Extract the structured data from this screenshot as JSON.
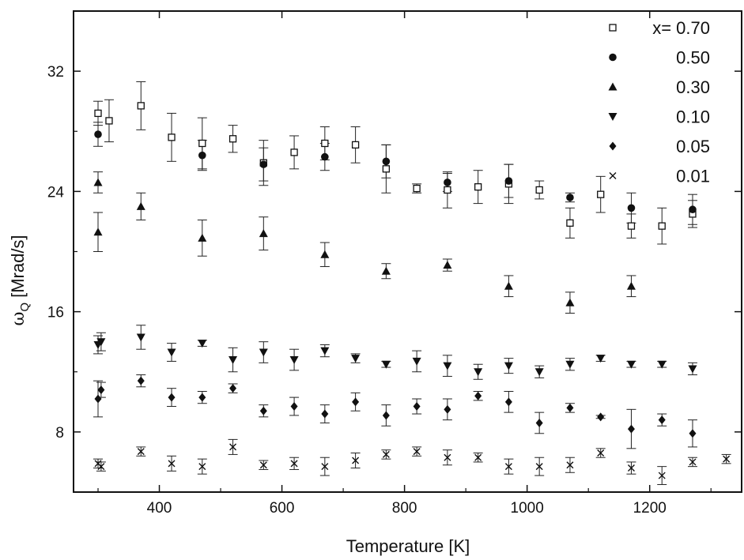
{
  "chart_data": {
    "type": "scatter",
    "title": "",
    "xlabel": "Temperature [K]",
    "ylabel_main": "ω",
    "ylabel_sub": "Q",
    "ylabel_unit": "[Mrad/s]",
    "xlim": [
      260,
      1350
    ],
    "ylim": [
      4,
      36
    ],
    "xticks": [
      400,
      600,
      800,
      1000,
      1200
    ],
    "yticks": [
      8,
      16,
      24,
      32
    ],
    "grid": false,
    "legend_position": "top-right",
    "series": [
      {
        "name": "x= 0.70",
        "marker": "open-square",
        "points": [
          {
            "x": 300,
            "y": 29.2,
            "err": 0.8
          },
          {
            "x": 318,
            "y": 28.7,
            "err": 1.4
          },
          {
            "x": 370,
            "y": 29.7,
            "err": 1.6
          },
          {
            "x": 420,
            "y": 27.6,
            "err": 1.6
          },
          {
            "x": 470,
            "y": 27.2,
            "err": 1.7
          },
          {
            "x": 520,
            "y": 27.5,
            "err": 0.9
          },
          {
            "x": 570,
            "y": 25.9,
            "err": 1.5
          },
          {
            "x": 620,
            "y": 26.6,
            "err": 1.1
          },
          {
            "x": 670,
            "y": 27.2,
            "err": 1.1
          },
          {
            "x": 720,
            "y": 27.1,
            "err": 1.2
          },
          {
            "x": 770,
            "y": 25.5,
            "err": 1.6
          },
          {
            "x": 820,
            "y": 24.2,
            "err": 0.3
          },
          {
            "x": 870,
            "y": 24.1,
            "err": 1.2
          },
          {
            "x": 920,
            "y": 24.3,
            "err": 1.1
          },
          {
            "x": 970,
            "y": 24.5,
            "err": 1.3
          },
          {
            "x": 1020,
            "y": 24.1,
            "err": 0.6
          },
          {
            "x": 1070,
            "y": 21.9,
            "err": 1.0
          },
          {
            "x": 1120,
            "y": 23.8,
            "err": 1.2
          },
          {
            "x": 1170,
            "y": 21.7,
            "err": 0.8
          },
          {
            "x": 1220,
            "y": 21.7,
            "err": 1.2
          },
          {
            "x": 1270,
            "y": 22.5,
            "err": 0.9
          }
        ]
      },
      {
        "name": "0.50",
        "marker": "filled-circle",
        "points": [
          {
            "x": 300,
            "y": 27.8,
            "err": 0.8
          },
          {
            "x": 470,
            "y": 26.4,
            "err": 1.0
          },
          {
            "x": 570,
            "y": 25.8,
            "err": 1.1
          },
          {
            "x": 670,
            "y": 26.3,
            "err": 0.9
          },
          {
            "x": 770,
            "y": 26.0,
            "err": 1.1
          },
          {
            "x": 870,
            "y": 24.6,
            "err": 0.6
          },
          {
            "x": 970,
            "y": 24.7,
            "err": 1.1
          },
          {
            "x": 1070,
            "y": 23.6,
            "err": 0.3
          },
          {
            "x": 1170,
            "y": 22.9,
            "err": 1.0
          },
          {
            "x": 1270,
            "y": 22.8,
            "err": 1.0
          }
        ]
      },
      {
        "name": "0.30",
        "marker": "filled-triangle-up",
        "points": [
          {
            "x": 300,
            "y": 24.6,
            "err": 0.7
          },
          {
            "x": 300,
            "y": 21.3,
            "err": 1.3
          },
          {
            "x": 370,
            "y": 23.0,
            "err": 0.9
          },
          {
            "x": 470,
            "y": 20.9,
            "err": 1.2
          },
          {
            "x": 570,
            "y": 21.2,
            "err": 1.1
          },
          {
            "x": 670,
            "y": 19.8,
            "err": 0.8
          },
          {
            "x": 770,
            "y": 18.7,
            "err": 0.5
          },
          {
            "x": 870,
            "y": 19.1,
            "err": 0.4
          },
          {
            "x": 970,
            "y": 17.7,
            "err": 0.7
          },
          {
            "x": 1070,
            "y": 16.6,
            "err": 0.7
          },
          {
            "x": 1170,
            "y": 17.7,
            "err": 0.7
          }
        ]
      },
      {
        "name": "0.10",
        "marker": "filled-triangle-down",
        "points": [
          {
            "x": 300,
            "y": 13.8,
            "err": 0.6
          },
          {
            "x": 305,
            "y": 14.0,
            "err": 0.6
          },
          {
            "x": 370,
            "y": 14.3,
            "err": 0.8
          },
          {
            "x": 420,
            "y": 13.3,
            "err": 0.6
          },
          {
            "x": 470,
            "y": 13.9,
            "err": 0.2
          },
          {
            "x": 520,
            "y": 12.8,
            "err": 0.8
          },
          {
            "x": 570,
            "y": 13.3,
            "err": 0.7
          },
          {
            "x": 620,
            "y": 12.8,
            "err": 0.7
          },
          {
            "x": 670,
            "y": 13.4,
            "err": 0.4
          },
          {
            "x": 720,
            "y": 12.9,
            "err": 0.3
          },
          {
            "x": 770,
            "y": 12.5,
            "err": 0.2
          },
          {
            "x": 820,
            "y": 12.7,
            "err": 0.7
          },
          {
            "x": 870,
            "y": 12.4,
            "err": 0.7
          },
          {
            "x": 920,
            "y": 12.0,
            "err": 0.5
          },
          {
            "x": 970,
            "y": 12.4,
            "err": 0.5
          },
          {
            "x": 1020,
            "y": 12.0,
            "err": 0.4
          },
          {
            "x": 1070,
            "y": 12.5,
            "err": 0.4
          },
          {
            "x": 1120,
            "y": 12.9,
            "err": 0.2
          },
          {
            "x": 1170,
            "y": 12.5,
            "err": 0.2
          },
          {
            "x": 1220,
            "y": 12.5,
            "err": 0.2
          },
          {
            "x": 1270,
            "y": 12.2,
            "err": 0.4
          }
        ]
      },
      {
        "name": "0.05",
        "marker": "filled-diamond",
        "points": [
          {
            "x": 300,
            "y": 10.2,
            "err": 1.2
          },
          {
            "x": 305,
            "y": 10.8,
            "err": 0.5
          },
          {
            "x": 370,
            "y": 11.4,
            "err": 0.4
          },
          {
            "x": 420,
            "y": 10.3,
            "err": 0.6
          },
          {
            "x": 470,
            "y": 10.3,
            "err": 0.4
          },
          {
            "x": 520,
            "y": 10.9,
            "err": 0.3
          },
          {
            "x": 570,
            "y": 9.4,
            "err": 0.4
          },
          {
            "x": 620,
            "y": 9.7,
            "err": 0.6
          },
          {
            "x": 670,
            "y": 9.2,
            "err": 0.6
          },
          {
            "x": 720,
            "y": 10.0,
            "err": 0.6
          },
          {
            "x": 770,
            "y": 9.1,
            "err": 0.7
          },
          {
            "x": 820,
            "y": 9.7,
            "err": 0.5
          },
          {
            "x": 870,
            "y": 9.5,
            "err": 0.7
          },
          {
            "x": 920,
            "y": 10.4,
            "err": 0.3
          },
          {
            "x": 970,
            "y": 10.0,
            "err": 0.7
          },
          {
            "x": 1020,
            "y": 8.6,
            "err": 0.7
          },
          {
            "x": 1070,
            "y": 9.6,
            "err": 0.3
          },
          {
            "x": 1120,
            "y": 9.0,
            "err": 0.1
          },
          {
            "x": 1170,
            "y": 8.2,
            "err": 1.3
          },
          {
            "x": 1220,
            "y": 8.8,
            "err": 0.4
          },
          {
            "x": 1270,
            "y": 7.9,
            "err": 0.9
          }
        ]
      },
      {
        "name": "0.01",
        "marker": "cross",
        "points": [
          {
            "x": 300,
            "y": 5.9,
            "err": 0.3
          },
          {
            "x": 305,
            "y": 5.7,
            "err": 0.3
          },
          {
            "x": 370,
            "y": 6.7,
            "err": 0.3
          },
          {
            "x": 420,
            "y": 5.9,
            "err": 0.5
          },
          {
            "x": 470,
            "y": 5.7,
            "err": 0.5
          },
          {
            "x": 520,
            "y": 7.0,
            "err": 0.5
          },
          {
            "x": 570,
            "y": 5.8,
            "err": 0.3
          },
          {
            "x": 620,
            "y": 5.9,
            "err": 0.4
          },
          {
            "x": 670,
            "y": 5.7,
            "err": 0.6
          },
          {
            "x": 720,
            "y": 6.1,
            "err": 0.5
          },
          {
            "x": 770,
            "y": 6.5,
            "err": 0.3
          },
          {
            "x": 820,
            "y": 6.7,
            "err": 0.3
          },
          {
            "x": 870,
            "y": 6.3,
            "err": 0.5
          },
          {
            "x": 920,
            "y": 6.3,
            "err": 0.3
          },
          {
            "x": 970,
            "y": 5.7,
            "err": 0.5
          },
          {
            "x": 1020,
            "y": 5.7,
            "err": 0.6
          },
          {
            "x": 1070,
            "y": 5.8,
            "err": 0.5
          },
          {
            "x": 1120,
            "y": 6.6,
            "err": 0.3
          },
          {
            "x": 1170,
            "y": 5.6,
            "err": 0.4
          },
          {
            "x": 1220,
            "y": 5.1,
            "err": 0.6
          },
          {
            "x": 1270,
            "y": 6.0,
            "err": 0.3
          },
          {
            "x": 1325,
            "y": 6.2,
            "err": 0.3
          }
        ]
      }
    ]
  }
}
